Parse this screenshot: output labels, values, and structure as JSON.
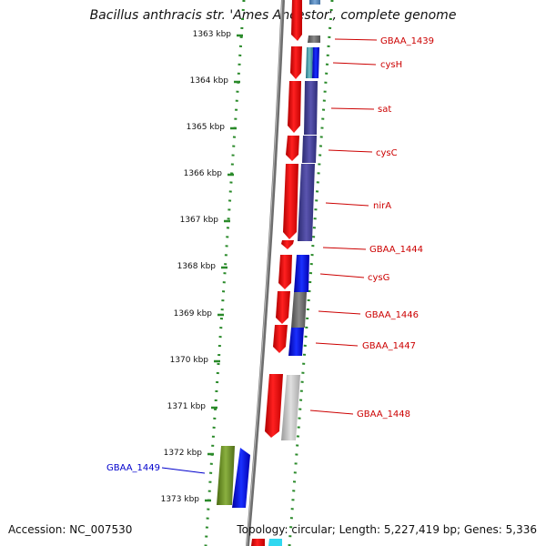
{
  "title": "Bacillus anthracis str. 'Ames Ancestor', complete genome",
  "accession": "Accession: NC_007530",
  "summary": "Topology: circular; Length: 5,227,419 bp; Genes: 5,336",
  "colors": {
    "cds": "#ff0000",
    "ticks": "#2a8a2a",
    "label_right": "#cc0000",
    "label_left": "#0000cc",
    "backbone": "#888888"
  },
  "scale_ticks": [
    "1363 kbp",
    "1364 kbp",
    "1365 kbp",
    "1366 kbp",
    "1367 kbp",
    "1368 kbp",
    "1369 kbp",
    "1370 kbp",
    "1371 kbp",
    "1372 kbp",
    "1373 kbp"
  ],
  "right_labels": [
    "GBAA_1439",
    "cysH",
    "sat",
    "cysC",
    "nirA",
    "GBAA_1444",
    "cysG",
    "GBAA_1446",
    "GBAA_1447",
    "GBAA_1448"
  ],
  "left_labels": [
    "GBAA_1449"
  ]
}
